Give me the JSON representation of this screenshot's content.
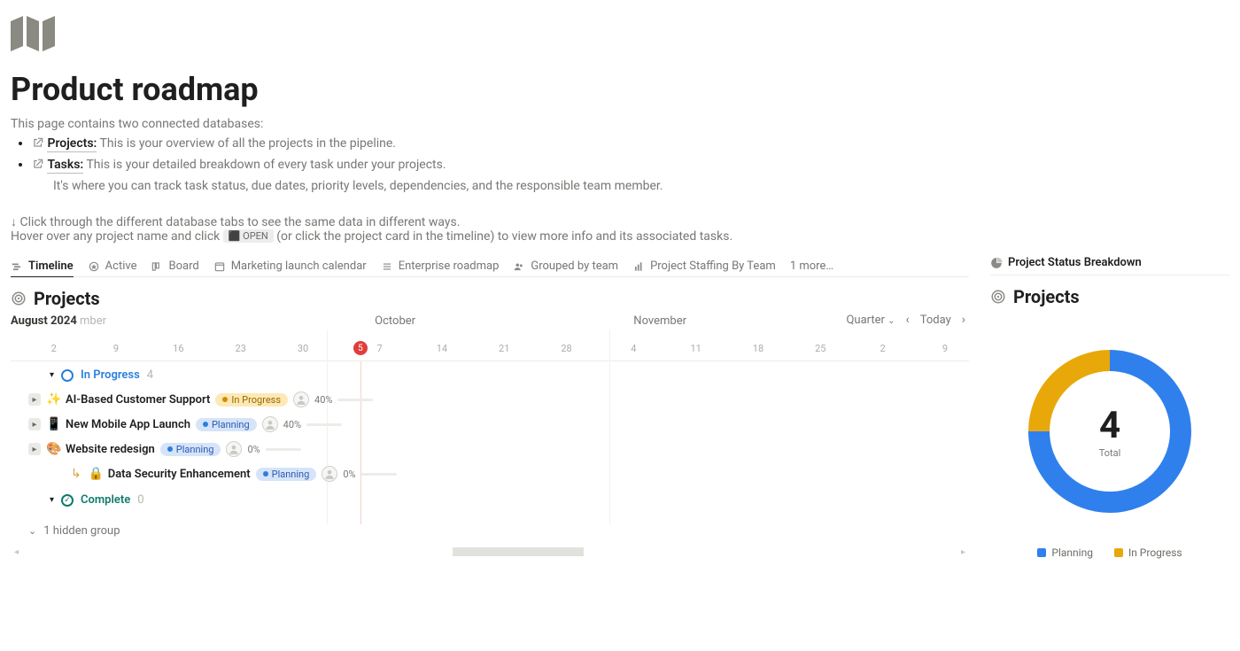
{
  "page": {
    "title": "Product roadmap",
    "intro": "This page contains two connected databases:",
    "databases": [
      {
        "name": "Projects",
        "desc": "This is your overview of all the projects in the pipeline."
      },
      {
        "name": "Tasks",
        "desc": "This is your detailed breakdown of every task under your projects.",
        "detail": "It's where you can track task status, due dates, priority levels, dependencies, and the responsible team member."
      }
    ],
    "hint_line1": "↓ Click through the different database tabs to see the same data in different ways.",
    "hint_line2a": "Hover over any project name and click ",
    "open_label": "⬛ OPEN",
    "hint_line2b": " (or click the project card in the timeline) to view more info and its associated tasks."
  },
  "tabs": [
    {
      "label": "Timeline",
      "icon": "timeline",
      "active": true
    },
    {
      "label": "Active",
      "icon": "star",
      "active": false
    },
    {
      "label": "Board",
      "icon": "board",
      "active": false
    },
    {
      "label": "Marketing launch calendar",
      "icon": "calendar",
      "active": false
    },
    {
      "label": "Enterprise roadmap",
      "icon": "list",
      "active": false
    },
    {
      "label": "Grouped by team",
      "icon": "people",
      "active": false
    },
    {
      "label": "Project Staffing By Team",
      "icon": "bars",
      "active": false
    }
  ],
  "more_tabs": "1 more…",
  "projects_heading": "Projects",
  "timeline": {
    "months": [
      {
        "label": "August 2024",
        "suffix": "mber",
        "leftPct": 0
      },
      {
        "label": "October",
        "leftPct": 38
      },
      {
        "label": "November",
        "leftPct": 65
      }
    ],
    "controls": {
      "scale": "Quarter",
      "today": "Today"
    },
    "today_day": "5",
    "today_pct": 36.5,
    "col_seps_pct": [
      33,
      62.5
    ],
    "dates": [
      {
        "label": "2",
        "pct": 4.5
      },
      {
        "label": "9",
        "pct": 11
      },
      {
        "label": "16",
        "pct": 17.5
      },
      {
        "label": "23",
        "pct": 24
      },
      {
        "label": "30",
        "pct": 30.5
      },
      {
        "label": "7",
        "pct": 38.5
      },
      {
        "label": "14",
        "pct": 45
      },
      {
        "label": "21",
        "pct": 51.5
      },
      {
        "label": "28",
        "pct": 58
      },
      {
        "label": "4",
        "pct": 65
      },
      {
        "label": "11",
        "pct": 71.5
      },
      {
        "label": "18",
        "pct": 78
      },
      {
        "label": "25",
        "pct": 84.5
      },
      {
        "label": "2",
        "pct": 91
      },
      {
        "label": "9",
        "pct": 97.5
      }
    ],
    "groups": [
      {
        "name": "In Progress",
        "style": "progress",
        "count": 4,
        "rows": [
          {
            "emoji": "✨",
            "name": "AI-Based Customer Support",
            "status": {
              "label": "In Progress",
              "kind": "yellow"
            },
            "pct": "40%",
            "barPct": 40,
            "child": false
          },
          {
            "emoji": "📱",
            "name": "New Mobile App Launch",
            "status": {
              "label": "Planning",
              "kind": "blue"
            },
            "pct": "40%",
            "barPct": 40,
            "child": false
          },
          {
            "emoji": "🎨",
            "name": "Website redesign",
            "status": {
              "label": "Planning",
              "kind": "blue"
            },
            "pct": "0%",
            "barPct": 0,
            "child": false
          },
          {
            "emoji": "🔒",
            "name": "Data Security Enhancement",
            "status": {
              "label": "Planning",
              "kind": "blue"
            },
            "pct": "0%",
            "barPct": 0,
            "child": true
          }
        ]
      },
      {
        "name": "Complete",
        "style": "complete",
        "count": 0,
        "rows": []
      }
    ],
    "hidden_group": "1 hidden group",
    "scroll": {
      "thumbLeftPct": 46,
      "thumbWidthPct": 14
    }
  },
  "right": {
    "tab_label": "Project Status Breakdown",
    "heading": "Projects",
    "donut": {
      "total": "4",
      "total_label": "Total",
      "radius": 80,
      "stroke": 24,
      "segments": [
        {
          "name": "Planning",
          "fraction": 0.75,
          "color": "#2f80ed"
        },
        {
          "name": "In Progress",
          "fraction": 0.25,
          "color": "#e8a80a"
        }
      ]
    },
    "legend": [
      {
        "label": "Planning",
        "color": "#2f80ed"
      },
      {
        "label": "In Progress",
        "color": "#e8a80a"
      }
    ]
  }
}
